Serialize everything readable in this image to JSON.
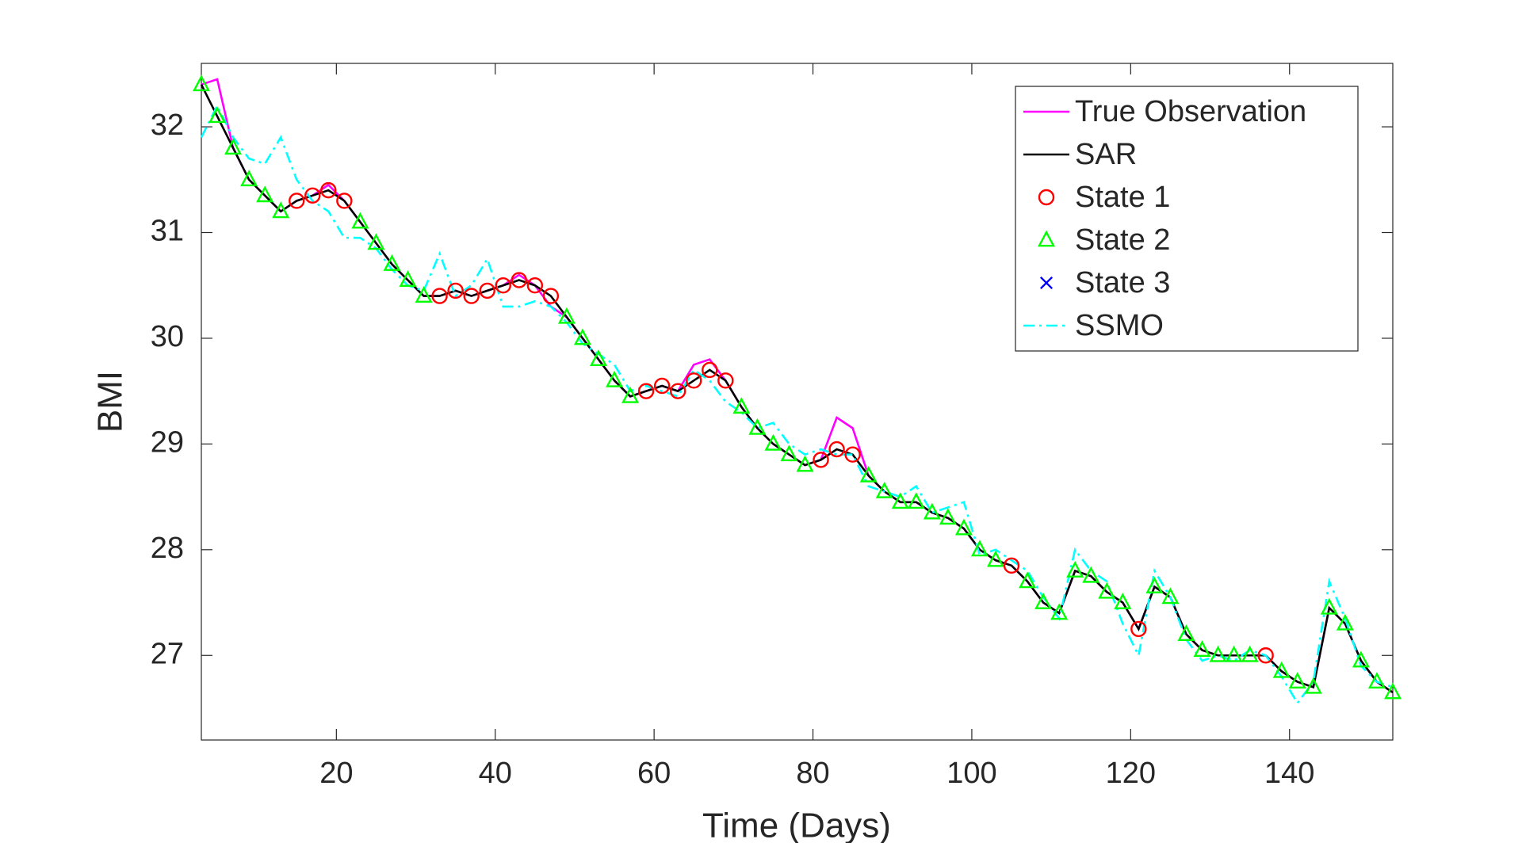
{
  "chart_data": {
    "type": "line",
    "x_label": "Time (Days)",
    "y_label": "BMI",
    "xlim": [
      3,
      153
    ],
    "xticks": [
      20,
      40,
      60,
      80,
      100,
      120,
      140
    ],
    "ylim": [
      26.2,
      32.6
    ],
    "yticks": [
      27,
      28,
      29,
      30,
      31,
      32
    ],
    "legend": "northeast",
    "grid": false,
    "series": [
      {
        "name": "True Observation",
        "color": "#ff00ff",
        "line": "solid",
        "x": [
          3,
          5,
          7,
          9,
          11,
          13,
          15,
          17,
          19,
          21,
          23,
          25,
          27,
          29,
          31,
          33,
          35,
          37,
          39,
          41,
          43,
          45,
          47,
          49,
          51,
          53,
          55,
          57,
          59,
          61,
          63,
          65,
          67,
          69,
          71,
          73,
          75,
          77,
          79,
          81,
          83,
          85,
          87,
          89,
          91,
          93,
          95,
          97,
          99,
          101,
          103,
          105,
          107,
          109,
          111,
          113,
          115,
          117,
          119,
          121,
          123,
          125,
          127,
          129,
          131,
          133,
          135,
          137,
          139,
          141,
          143,
          145,
          147,
          149,
          151,
          153
        ],
        "values": [
          32.4,
          32.45,
          31.8,
          31.5,
          31.35,
          31.2,
          31.3,
          31.35,
          31.45,
          31.3,
          31.1,
          30.9,
          30.7,
          30.55,
          30.4,
          30.4,
          30.45,
          30.4,
          30.45,
          30.5,
          30.6,
          30.5,
          30.3,
          30.2,
          30.0,
          29.8,
          29.6,
          29.45,
          29.5,
          29.55,
          29.5,
          29.75,
          29.8,
          29.6,
          29.35,
          29.15,
          29.0,
          28.9,
          28.8,
          28.85,
          29.25,
          29.15,
          28.7,
          28.55,
          28.45,
          28.45,
          28.35,
          28.3,
          28.2,
          28.0,
          27.9,
          27.85,
          27.7,
          27.5,
          27.4,
          27.8,
          27.75,
          27.6,
          27.5,
          27.25,
          27.65,
          27.55,
          27.2,
          27.05,
          27.0,
          27.0,
          27.0,
          27.0,
          26.85,
          26.75,
          26.7,
          27.45,
          27.3,
          26.95,
          26.75,
          26.65
        ]
      },
      {
        "name": "SAR",
        "color": "#000000",
        "line": "solid",
        "x": [
          3,
          5,
          7,
          9,
          11,
          13,
          15,
          17,
          19,
          21,
          23,
          25,
          27,
          29,
          31,
          33,
          35,
          37,
          39,
          41,
          43,
          45,
          47,
          49,
          51,
          53,
          55,
          57,
          59,
          61,
          63,
          65,
          67,
          69,
          71,
          73,
          75,
          77,
          79,
          81,
          83,
          85,
          87,
          89,
          91,
          93,
          95,
          97,
          99,
          101,
          103,
          105,
          107,
          109,
          111,
          113,
          115,
          117,
          119,
          121,
          123,
          125,
          127,
          129,
          131,
          133,
          135,
          137,
          139,
          141,
          143,
          145,
          147,
          149,
          151,
          153
        ],
        "values": [
          32.4,
          32.1,
          31.8,
          31.5,
          31.35,
          31.2,
          31.3,
          31.35,
          31.4,
          31.3,
          31.1,
          30.9,
          30.7,
          30.55,
          30.4,
          30.4,
          30.45,
          30.4,
          30.45,
          30.5,
          30.55,
          30.5,
          30.4,
          30.2,
          30.0,
          29.8,
          29.6,
          29.45,
          29.5,
          29.55,
          29.5,
          29.6,
          29.7,
          29.6,
          29.35,
          29.15,
          29.0,
          28.9,
          28.8,
          28.85,
          28.95,
          28.9,
          28.7,
          28.55,
          28.45,
          28.45,
          28.35,
          28.3,
          28.2,
          28.0,
          27.9,
          27.85,
          27.7,
          27.5,
          27.4,
          27.8,
          27.75,
          27.6,
          27.5,
          27.25,
          27.65,
          27.55,
          27.2,
          27.05,
          27.0,
          27.0,
          27.0,
          27.0,
          26.85,
          26.75,
          26.7,
          27.45,
          27.3,
          26.95,
          26.75,
          26.65
        ]
      },
      {
        "name": "State 1",
        "color": "#ff0000",
        "marker": "circle",
        "x": [
          15,
          17,
          19,
          21,
          33,
          35,
          37,
          39,
          41,
          43,
          45,
          47,
          59,
          61,
          63,
          65,
          67,
          69,
          81,
          83,
          85,
          105,
          121,
          137
        ],
        "values": [
          31.3,
          31.35,
          31.4,
          31.3,
          30.4,
          30.45,
          30.4,
          30.45,
          30.5,
          30.55,
          30.5,
          30.4,
          29.5,
          29.55,
          29.5,
          29.6,
          29.7,
          29.6,
          28.85,
          28.95,
          28.9,
          27.85,
          27.25,
          27.0
        ]
      },
      {
        "name": "State 2",
        "color": "#00ff00",
        "marker": "triangle",
        "x": [
          3,
          5,
          7,
          9,
          11,
          13,
          23,
          25,
          27,
          29,
          31,
          49,
          51,
          53,
          55,
          57,
          71,
          73,
          75,
          77,
          79,
          87,
          89,
          91,
          93,
          95,
          97,
          99,
          101,
          103,
          107,
          109,
          111,
          113,
          115,
          117,
          119,
          123,
          125,
          127,
          129,
          131,
          133,
          135,
          139,
          141,
          143,
          145,
          147,
          149,
          151,
          153
        ],
        "values": [
          32.4,
          32.1,
          31.8,
          31.5,
          31.35,
          31.2,
          31.1,
          30.9,
          30.7,
          30.55,
          30.4,
          30.2,
          30.0,
          29.8,
          29.6,
          29.45,
          29.35,
          29.15,
          29.0,
          28.9,
          28.8,
          28.7,
          28.55,
          28.45,
          28.45,
          28.35,
          28.3,
          28.2,
          28.0,
          27.9,
          27.7,
          27.5,
          27.4,
          27.8,
          27.75,
          27.6,
          27.5,
          27.65,
          27.55,
          27.2,
          27.05,
          27.0,
          27.0,
          27.0,
          26.85,
          26.75,
          26.7,
          27.45,
          27.3,
          26.95,
          26.75,
          26.65
        ]
      },
      {
        "name": "State 3",
        "color": "#0000ff",
        "marker": "x",
        "x": [],
        "values": []
      },
      {
        "name": "SSMO",
        "color": "#00ffff",
        "line": "dash-dot",
        "x": [
          3,
          5,
          7,
          9,
          11,
          13,
          15,
          17,
          19,
          21,
          23,
          25,
          27,
          29,
          31,
          33,
          35,
          37,
          39,
          41,
          43,
          45,
          47,
          49,
          51,
          53,
          55,
          57,
          59,
          61,
          63,
          65,
          67,
          69,
          71,
          73,
          75,
          77,
          79,
          81,
          83,
          85,
          87,
          89,
          91,
          93,
          95,
          97,
          99,
          101,
          103,
          105,
          107,
          109,
          111,
          113,
          115,
          117,
          119,
          121,
          123,
          125,
          127,
          129,
          131,
          133,
          135,
          137,
          139,
          141,
          143,
          145,
          147,
          149,
          151,
          153
        ],
        "values": [
          31.9,
          32.2,
          31.9,
          31.7,
          31.65,
          31.9,
          31.5,
          31.3,
          31.2,
          30.95,
          30.95,
          30.85,
          30.65,
          30.5,
          30.45,
          30.8,
          30.4,
          30.5,
          30.75,
          30.3,
          30.3,
          30.35,
          30.3,
          30.15,
          29.95,
          29.85,
          29.75,
          29.5,
          29.55,
          29.5,
          29.45,
          29.7,
          29.6,
          29.4,
          29.3,
          29.15,
          29.2,
          29.0,
          28.9,
          28.95,
          28.9,
          28.9,
          28.6,
          28.55,
          28.5,
          28.6,
          28.35,
          28.4,
          28.45,
          27.95,
          28.0,
          27.9,
          27.8,
          27.55,
          27.35,
          28.0,
          27.8,
          27.7,
          27.3,
          27.0,
          27.8,
          27.55,
          27.15,
          26.95,
          27.0,
          26.95,
          27.05,
          27.0,
          26.8,
          26.55,
          26.75,
          27.7,
          27.35,
          26.9,
          26.75,
          26.7
        ]
      }
    ]
  }
}
